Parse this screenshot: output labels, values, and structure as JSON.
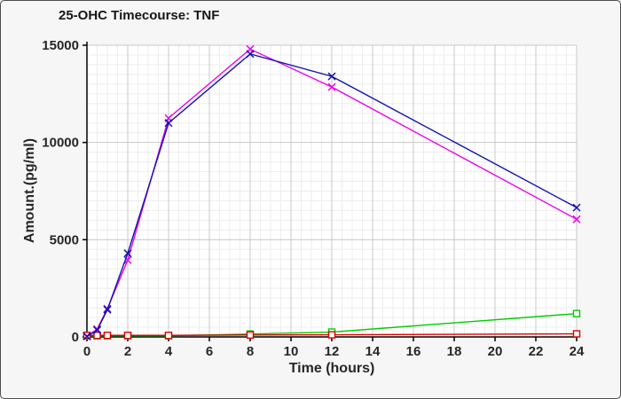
{
  "title": "25-OHC Timecourse: TNF",
  "chart_data": {
    "type": "line",
    "title": "25-OHC Timecourse: TNF",
    "xlabel": "Time (hours)",
    "ylabel": "Amount.(pg/ml)",
    "xlim": [
      0,
      24
    ],
    "ylim": [
      0,
      15000
    ],
    "x_ticks": [
      0,
      2,
      4,
      6,
      8,
      10,
      12,
      14,
      16,
      18,
      20,
      22,
      24
    ],
    "y_ticks": [
      0,
      5000,
      10000,
      15000
    ],
    "grid": {
      "x_minor_step": 0.5,
      "x_major_step": 2,
      "y_minor_step": 500,
      "y_major_step": 5000,
      "minor_color": "#ededed",
      "major_color": "#c8c8c8"
    },
    "legend": "none",
    "x": [
      0,
      0.5,
      1,
      2,
      4,
      8,
      12,
      24
    ],
    "series": [
      {
        "name": "green-squares",
        "color": "#00cc00",
        "marker": "square",
        "values": [
          60,
          60,
          60,
          60,
          60,
          150,
          250,
          1200
        ]
      },
      {
        "name": "red-squares",
        "color": "#dd0000",
        "marker": "square",
        "values": [
          80,
          80,
          80,
          80,
          80,
          100,
          110,
          160
        ]
      },
      {
        "name": "magenta-crosses",
        "color": "#ee00ee",
        "marker": "x",
        "values": [
          30,
          400,
          1450,
          3950,
          11250,
          14800,
          12850,
          6050
        ]
      },
      {
        "name": "blue-crosses",
        "color": "#1111b0",
        "marker": "x",
        "values": [
          30,
          350,
          1400,
          4300,
          11000,
          14550,
          13400,
          6650
        ]
      }
    ],
    "axis_color": "#000000",
    "tick_label_color": "#262626",
    "plot_bg": "#ffffff"
  }
}
